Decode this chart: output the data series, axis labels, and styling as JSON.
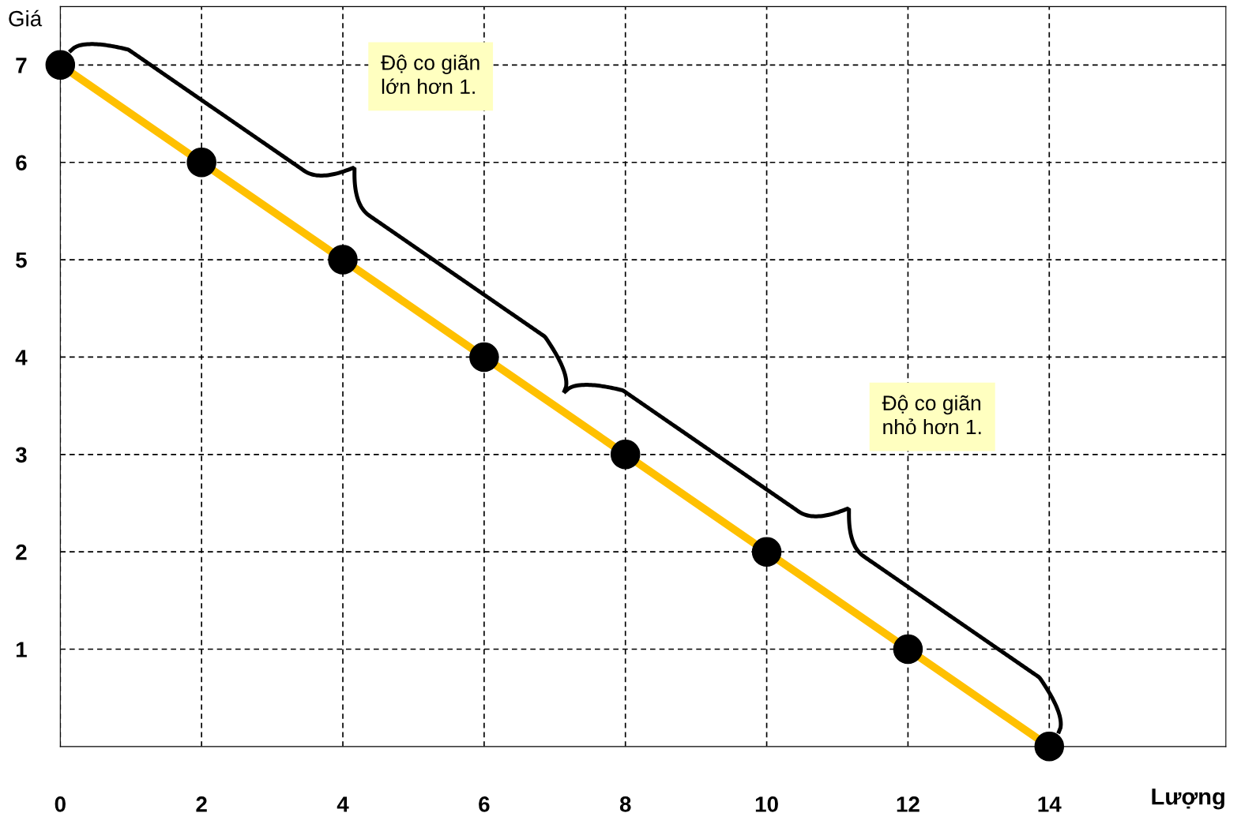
{
  "chart_data": {
    "type": "line",
    "xlabel": "Lượng",
    "ylabel": "Giá",
    "x": [
      0,
      2,
      4,
      6,
      8,
      10,
      12,
      14
    ],
    "series": [
      {
        "color": "#ffc000",
        "values": [
          7,
          6,
          5,
          4,
          3,
          2,
          1,
          0
        ]
      }
    ],
    "marker": "circle",
    "grid": true,
    "xlim": [
      0,
      16.5
    ],
    "ylim": [
      0,
      7.6
    ],
    "xticks": [
      0,
      2,
      4,
      6,
      8,
      10,
      12,
      14
    ],
    "yticks": [
      1,
      2,
      3,
      4,
      5,
      6,
      7
    ],
    "annotations": [
      "Độ co giãn\nlớn hơn 1.",
      "Độ co giãn\nnhỏ hơn 1."
    ]
  }
}
